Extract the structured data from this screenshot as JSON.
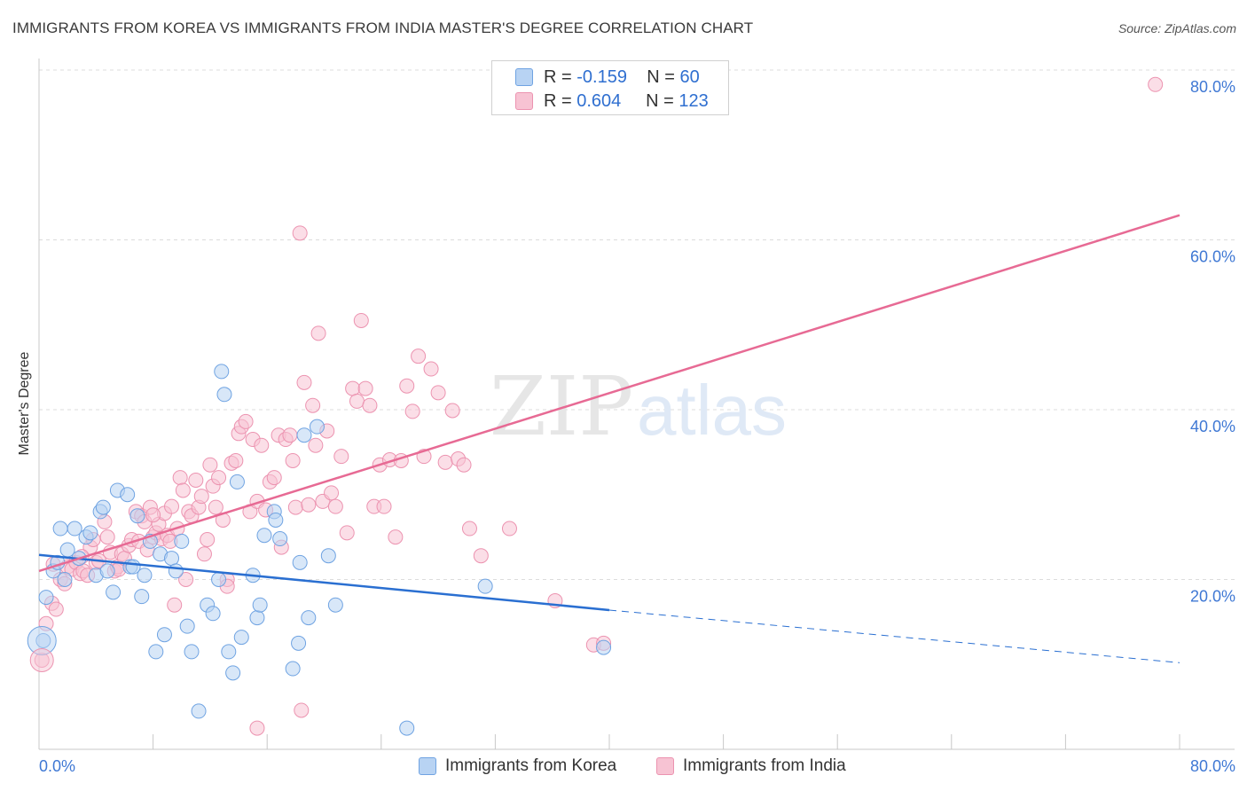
{
  "title": "IMMIGRANTS FROM KOREA VS IMMIGRANTS FROM INDIA MASTER'S DEGREE CORRELATION CHART",
  "source": "Source: ZipAtlas.com",
  "watermark": {
    "zip": "ZIP",
    "atlas": "atlas"
  },
  "legend_top": {
    "rows": [
      {
        "r_label": "R = ",
        "r_value": "-0.159",
        "n_label": "N = ",
        "n_value": "60"
      },
      {
        "r_label": "R = ",
        "r_value": "0.604",
        "n_label": "N = ",
        "n_value": "123"
      }
    ]
  },
  "legend_bottom": {
    "items": [
      "Immigrants from Korea",
      "Immigrants from India"
    ]
  },
  "colors": {
    "korea_fill": "#b8d3f3",
    "korea_stroke": "#6fa3e2",
    "korea_line": "#2a6fd1",
    "india_fill": "#f7c3d3",
    "india_stroke": "#ec93b0",
    "india_line": "#e76a94",
    "axis_text": "#3f78d4",
    "grid": "#dcdcdc"
  },
  "chart_data": {
    "type": "scatter",
    "title": "IMMIGRANTS FROM KOREA VS IMMIGRANTS FROM INDIA MASTER'S DEGREE CORRELATION CHART",
    "xlabel": "",
    "ylabel": "Master's Degree",
    "xlim": [
      0,
      80
    ],
    "ylim": [
      0,
      82
    ],
    "x_tick_labels": [
      "0.0%",
      "80.0%"
    ],
    "y_ticks": [
      20,
      40,
      60,
      80
    ],
    "y_tick_labels": [
      "20.0%",
      "40.0%",
      "60.0%",
      "80.0%"
    ],
    "grid": "horizontal dashed",
    "legend_position": "top-center",
    "series": [
      {
        "name": "Immigrants from Korea",
        "r": -0.159,
        "n": 60,
        "trend": {
          "x": [
            0,
            40
          ],
          "y": [
            22.9,
            16.4
          ],
          "dashed_to": [
            80,
            10.2
          ]
        },
        "points": [
          [
            0.5,
            17.9
          ],
          [
            0.3,
            12.8
          ],
          [
            1.0,
            21.0
          ],
          [
            1.3,
            22.0
          ],
          [
            1.5,
            26.0
          ],
          [
            1.8,
            20.0
          ],
          [
            2.0,
            23.5
          ],
          [
            2.5,
            26.0
          ],
          [
            2.8,
            22.5
          ],
          [
            3.3,
            25.0
          ],
          [
            3.6,
            25.5
          ],
          [
            4.0,
            20.5
          ],
          [
            4.3,
            28.0
          ],
          [
            4.5,
            28.5
          ],
          [
            4.8,
            21.0
          ],
          [
            5.2,
            18.5
          ],
          [
            5.5,
            30.5
          ],
          [
            6.2,
            30.0
          ],
          [
            6.4,
            21.5
          ],
          [
            6.6,
            21.5
          ],
          [
            6.9,
            27.5
          ],
          [
            7.2,
            18.0
          ],
          [
            7.4,
            20.5
          ],
          [
            7.8,
            24.5
          ],
          [
            8.2,
            11.5
          ],
          [
            8.5,
            23.0
          ],
          [
            8.8,
            13.5
          ],
          [
            9.3,
            22.5
          ],
          [
            9.6,
            21.0
          ],
          [
            10.0,
            24.5
          ],
          [
            10.4,
            14.5
          ],
          [
            10.7,
            11.5
          ],
          [
            11.2,
            4.5
          ],
          [
            11.8,
            17.0
          ],
          [
            12.2,
            16.0
          ],
          [
            12.6,
            20.0
          ],
          [
            12.8,
            44.5
          ],
          [
            13.0,
            41.8
          ],
          [
            13.3,
            11.5
          ],
          [
            13.6,
            9.0
          ],
          [
            13.9,
            31.5
          ],
          [
            14.2,
            13.2
          ],
          [
            15.0,
            20.5
          ],
          [
            15.3,
            15.5
          ],
          [
            15.5,
            17.0
          ],
          [
            15.8,
            25.2
          ],
          [
            16.5,
            28.0
          ],
          [
            16.6,
            27.0
          ],
          [
            16.9,
            24.8
          ],
          [
            17.8,
            9.5
          ],
          [
            18.2,
            12.5
          ],
          [
            18.3,
            22.0
          ],
          [
            18.6,
            37.0
          ],
          [
            18.9,
            15.5
          ],
          [
            19.5,
            38.0
          ],
          [
            20.3,
            22.8
          ],
          [
            20.8,
            17.0
          ],
          [
            25.8,
            2.5
          ],
          [
            31.3,
            19.2
          ],
          [
            39.6,
            12.0
          ]
        ]
      },
      {
        "name": "Immigrants from India",
        "r": 0.604,
        "n": 123,
        "trend": {
          "x": [
            0,
            80
          ],
          "y": [
            21.0,
            62.9
          ]
        },
        "points": [
          [
            0.2,
            10.5
          ],
          [
            0.5,
            14.8
          ],
          [
            0.9,
            17.2
          ],
          [
            1.2,
            16.5
          ],
          [
            1.5,
            20.0
          ],
          [
            1.8,
            19.5
          ],
          [
            2.0,
            21.5
          ],
          [
            2.3,
            21.2
          ],
          [
            2.6,
            22.0
          ],
          [
            2.9,
            20.7
          ],
          [
            3.1,
            21.0
          ],
          [
            3.4,
            20.5
          ],
          [
            3.6,
            23.8
          ],
          [
            3.8,
            24.7
          ],
          [
            4.0,
            22.0
          ],
          [
            4.2,
            22.2
          ],
          [
            4.6,
            26.8
          ],
          [
            4.8,
            25.0
          ],
          [
            5.0,
            23.2
          ],
          [
            5.3,
            21.0
          ],
          [
            5.5,
            21.5
          ],
          [
            5.6,
            21.2
          ],
          [
            5.8,
            23.0
          ],
          [
            6.0,
            22.5
          ],
          [
            6.3,
            24.0
          ],
          [
            6.5,
            24.7
          ],
          [
            6.8,
            28.0
          ],
          [
            7.0,
            24.5
          ],
          [
            7.2,
            27.5
          ],
          [
            7.4,
            26.8
          ],
          [
            7.6,
            23.5
          ],
          [
            7.8,
            28.5
          ],
          [
            8.0,
            25.0
          ],
          [
            8.2,
            25.5
          ],
          [
            8.4,
            26.5
          ],
          [
            8.6,
            24.8
          ],
          [
            8.8,
            27.8
          ],
          [
            9.0,
            25.2
          ],
          [
            9.2,
            24.5
          ],
          [
            9.3,
            28.6
          ],
          [
            9.5,
            17.0
          ],
          [
            9.7,
            26.0
          ],
          [
            9.9,
            32.0
          ],
          [
            10.1,
            30.5
          ],
          [
            10.3,
            20.0
          ],
          [
            10.5,
            28.0
          ],
          [
            10.7,
            27.5
          ],
          [
            11.0,
            31.7
          ],
          [
            11.2,
            28.5
          ],
          [
            11.4,
            29.8
          ],
          [
            11.6,
            23.0
          ],
          [
            11.8,
            24.7
          ],
          [
            12.0,
            33.5
          ],
          [
            12.2,
            31.0
          ],
          [
            12.4,
            28.5
          ],
          [
            12.6,
            32.0
          ],
          [
            12.9,
            27.0
          ],
          [
            13.2,
            20.0
          ],
          [
            13.5,
            33.7
          ],
          [
            13.8,
            34.0
          ],
          [
            14.0,
            37.2
          ],
          [
            14.2,
            38.0
          ],
          [
            14.5,
            38.6
          ],
          [
            14.8,
            28.0
          ],
          [
            15.0,
            36.5
          ],
          [
            15.3,
            29.2
          ],
          [
            15.6,
            35.8
          ],
          [
            15.9,
            28.2
          ],
          [
            16.2,
            31.5
          ],
          [
            16.5,
            32.0
          ],
          [
            16.8,
            37.0
          ],
          [
            17.0,
            23.8
          ],
          [
            17.3,
            36.5
          ],
          [
            17.6,
            37.0
          ],
          [
            17.8,
            34.0
          ],
          [
            18.0,
            28.5
          ],
          [
            18.3,
            60.8
          ],
          [
            18.6,
            43.2
          ],
          [
            18.9,
            28.8
          ],
          [
            19.2,
            40.5
          ],
          [
            19.4,
            35.8
          ],
          [
            19.6,
            49.0
          ],
          [
            19.9,
            29.2
          ],
          [
            20.2,
            37.5
          ],
          [
            20.5,
            30.2
          ],
          [
            20.8,
            28.6
          ],
          [
            21.2,
            34.5
          ],
          [
            21.6,
            25.5
          ],
          [
            22.0,
            42.5
          ],
          [
            22.3,
            41.0
          ],
          [
            22.6,
            50.5
          ],
          [
            22.9,
            42.5
          ],
          [
            23.2,
            40.5
          ],
          [
            23.5,
            28.6
          ],
          [
            23.9,
            33.5
          ],
          [
            24.2,
            28.6
          ],
          [
            24.6,
            34.1
          ],
          [
            25.0,
            25.0
          ],
          [
            25.4,
            34.0
          ],
          [
            25.8,
            42.8
          ],
          [
            26.2,
            39.8
          ],
          [
            26.6,
            46.3
          ],
          [
            27.0,
            34.5
          ],
          [
            27.5,
            44.8
          ],
          [
            28.0,
            42.0
          ],
          [
            28.5,
            33.8
          ],
          [
            29.0,
            39.9
          ],
          [
            29.4,
            34.2
          ],
          [
            29.8,
            33.5
          ],
          [
            30.2,
            26.0
          ],
          [
            31.0,
            22.8
          ],
          [
            33.0,
            26.0
          ],
          [
            36.2,
            17.5
          ],
          [
            38.9,
            12.3
          ],
          [
            39.6,
            12.5
          ],
          [
            8.0,
            27.6
          ],
          [
            13.2,
            19.2
          ],
          [
            15.3,
            2.5
          ],
          [
            18.4,
            4.6
          ],
          [
            78.3,
            78.3
          ],
          [
            1.0,
            21.8
          ],
          [
            3.0,
            22.7
          ]
        ]
      }
    ]
  }
}
